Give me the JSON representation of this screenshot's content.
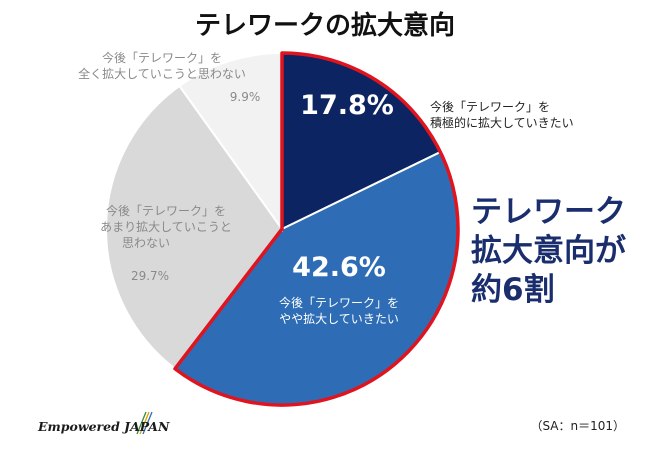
{
  "chart_data": {
    "type": "pie",
    "title": "テレワークの拡大意向",
    "slices": [
      {
        "label_lines": [
          "今後「テレワーク」を",
          "積極的に拡大していきたい"
        ],
        "value": 17.8,
        "display": "17.8%",
        "color": "#0d2462"
      },
      {
        "label_lines": [
          "今後「テレワーク」を",
          "やや拡大していきたい"
        ],
        "value": 42.6,
        "display": "42.6%",
        "color": "#2e6db5"
      },
      {
        "label_lines": [
          "今後「テレワーク」を",
          "あまり拡大していこうと",
          "思わない"
        ],
        "value": 29.7,
        "display": "29.7%",
        "color": "#d9d9d9"
      },
      {
        "label_lines": [
          "今後「テレワーク」を",
          "全く拡大していこうと思わない"
        ],
        "value": 9.9,
        "display": "9.9%",
        "color": "#f2f2f2"
      }
    ],
    "highlight_color": "#e0141e"
  },
  "callout": {
    "lines": [
      "テレワーク",
      "拡大意向が",
      "約6割"
    ]
  },
  "footer": {
    "sample_note": "（SA：n＝101）",
    "brand": "Empowered JAPAN"
  }
}
